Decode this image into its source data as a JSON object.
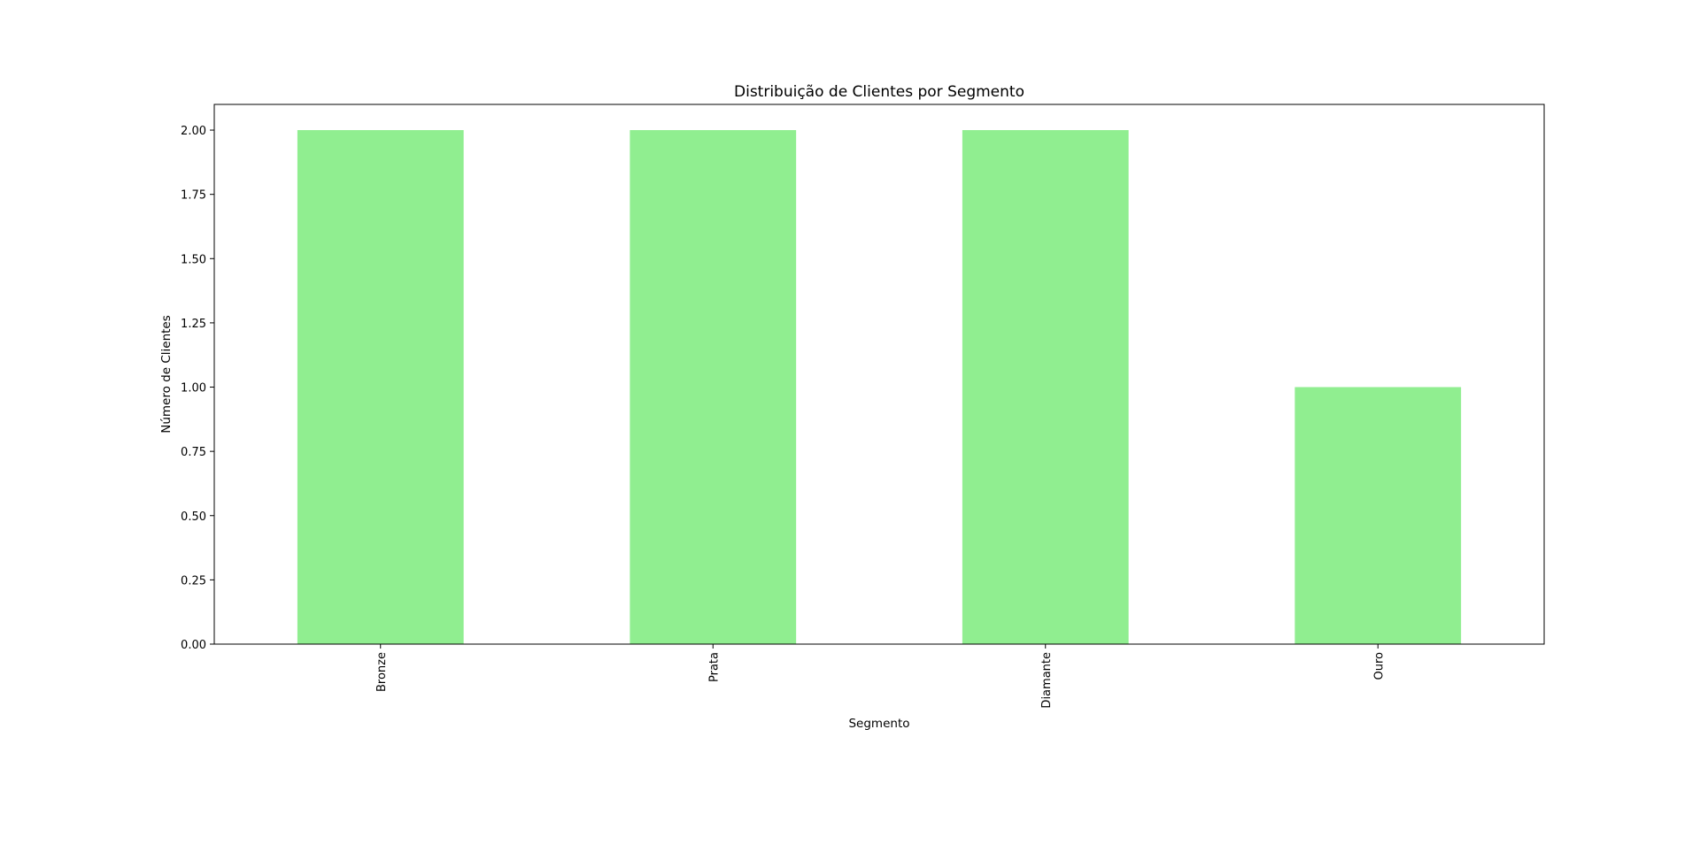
{
  "chart_data": {
    "type": "bar",
    "title": "Distribuição de Clientes por Segmento",
    "xlabel": "Segmento",
    "ylabel": "Número de Clientes",
    "categories": [
      "Bronze",
      "Prata",
      "Diamante",
      "Ouro"
    ],
    "values": [
      2,
      2,
      2,
      1
    ],
    "ylim": [
      0,
      2.1
    ],
    "yticks": [
      0,
      0.25,
      0.5,
      0.75,
      1.0,
      1.25,
      1.5,
      1.75,
      2.0
    ],
    "ytick_labels": [
      "0.00",
      "0.25",
      "0.50",
      "0.75",
      "1.00",
      "1.25",
      "1.50",
      "1.75",
      "2.00"
    ],
    "x_tick_rotation": "vertical",
    "grid": false,
    "legend": "none",
    "bar_color": "#90EE90"
  }
}
